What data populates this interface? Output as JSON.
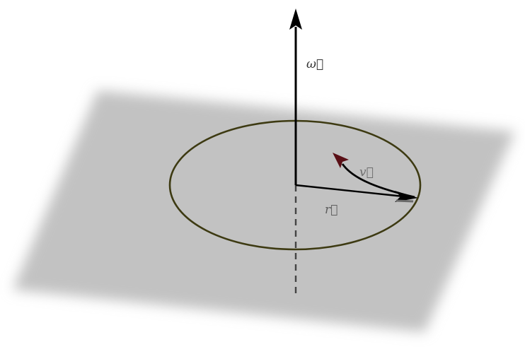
{
  "diagram": {
    "labels": {
      "omega": "ω⃗",
      "velocity": "v⃗",
      "radius": "r⃗"
    },
    "colors": {
      "plane": "#c2c2c2",
      "orbit": "#3d3a12",
      "axis": "#000000",
      "velocity_head": "#5a0f16",
      "omega_label": "#333333",
      "v_label": "#6e6e6e",
      "r_label": "#5e5e5e"
    }
  }
}
